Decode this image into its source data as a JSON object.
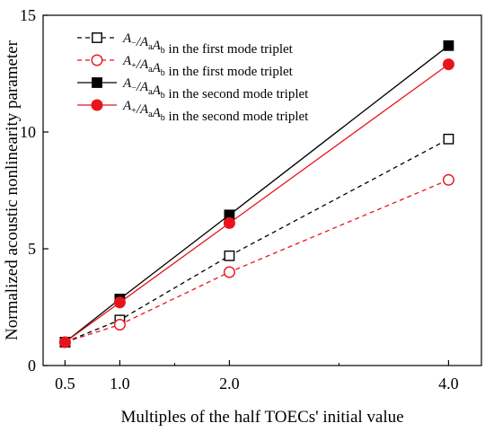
{
  "chart_data": {
    "type": "line",
    "xlabel": "Multiples of the half TOECs' initial value",
    "ylabel": "Normalized acoustic nonlinearity parameter",
    "xlim": [
      0.3,
      4.3
    ],
    "ylim": [
      0,
      15
    ],
    "x_ticks": [
      0.5,
      1.0,
      2.0,
      4.0
    ],
    "x_tick_labels": [
      "0.5",
      "1.0",
      "2.0",
      "4.0"
    ],
    "y_ticks": [
      0,
      5,
      10,
      15
    ],
    "y_tick_labels": [
      "0",
      "5",
      "10",
      "15"
    ],
    "grid": false,
    "legend_position": "top-left",
    "series": [
      {
        "legend": {
          "A1": "A",
          "s1": "−",
          "mid": "/A",
          "s2": "a",
          "A2": "A",
          "s3": "b",
          "tail": " in the first mode triplet"
        },
        "x": [
          0.5,
          1.0,
          2.0,
          4.0
        ],
        "y": [
          1.0,
          1.95,
          4.7,
          9.7
        ],
        "color": "#000000",
        "dash": true,
        "marker": "square-open"
      },
      {
        "legend": {
          "A1": "A",
          "s1": "+",
          "mid": "/A",
          "s2": "a",
          "A2": "A",
          "s3": "b",
          "tail": " in the first mode triplet"
        },
        "x": [
          0.5,
          1.0,
          2.0,
          4.0
        ],
        "y": [
          1.0,
          1.75,
          4.0,
          7.95
        ],
        "color": "#e8141c",
        "dash": true,
        "marker": "circle-open"
      },
      {
        "legend": {
          "A1": "A",
          "s1": "−",
          "mid": "/A",
          "s2": "a",
          "A2": "A",
          "s3": "b",
          "tail": " in the second mode triplet"
        },
        "x": [
          0.5,
          1.0,
          2.0,
          4.0
        ],
        "y": [
          1.0,
          2.85,
          6.45,
          13.7
        ],
        "color": "#000000",
        "dash": false,
        "marker": "square-filled"
      },
      {
        "legend": {
          "A1": "A",
          "s1": "+",
          "mid": "/A",
          "s2": "a",
          "A2": "A",
          "s3": "b",
          "tail": " in the second mode triplet"
        },
        "x": [
          0.5,
          1.0,
          2.0,
          4.0
        ],
        "y": [
          1.0,
          2.7,
          6.1,
          12.9
        ],
        "color": "#e8141c",
        "dash": false,
        "marker": "circle-filled"
      }
    ]
  }
}
